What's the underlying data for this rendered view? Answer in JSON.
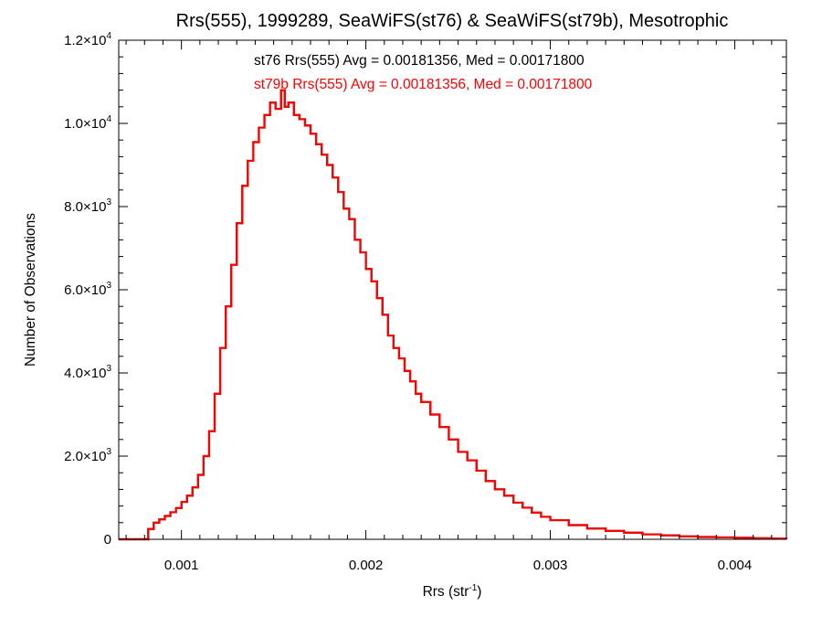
{
  "chart_data": {
    "type": "line",
    "step": true,
    "title": "Rrs(555), 1999289, SeaWiFS(st76) & SeaWiFS(st79b), Mesotrophic",
    "xlabel": {
      "base": "Rrs (str",
      "sup": "-1",
      "close": ")"
    },
    "ylabel": "Number of Observations",
    "xlim": [
      0.00066,
      0.00428
    ],
    "ylim": [
      0,
      12000
    ],
    "grid": false,
    "x_ticks": [
      {
        "value": 0.001,
        "label": "0.001"
      },
      {
        "value": 0.002,
        "label": "0.002"
      },
      {
        "value": 0.003,
        "label": "0.003"
      },
      {
        "value": 0.004,
        "label": "0.004"
      }
    ],
    "y_ticks": [
      {
        "value": 0,
        "label": "0",
        "exp": ""
      },
      {
        "value": 2000,
        "label": "2.0×10",
        "exp": "3"
      },
      {
        "value": 4000,
        "label": "4.0×10",
        "exp": "3"
      },
      {
        "value": 6000,
        "label": "6.0×10",
        "exp": "3"
      },
      {
        "value": 8000,
        "label": "8.0×10",
        "exp": "3"
      },
      {
        "value": 10000,
        "label": "1.0×10",
        "exp": "4"
      },
      {
        "value": 12000,
        "label": "1.2×10",
        "exp": "4"
      }
    ],
    "annotations": [
      {
        "text": "st76 Rrs(555) Avg = 0.00181356, Med = 0.00171800",
        "color": "#000000"
      },
      {
        "text": "st79b Rrs(555) Avg = 0.00181356, Med = 0.00171800",
        "color": "#ff0000"
      }
    ],
    "series": [
      {
        "name": "st76",
        "color": "#000000",
        "ref": "shared"
      },
      {
        "name": "st79b",
        "color": "#ff0000",
        "ref": "shared"
      }
    ],
    "x": [
      0.00066,
      0.00081,
      0.00082,
      0.00085,
      0.00088,
      0.00091,
      0.00094,
      0.00097,
      0.001,
      0.00103,
      0.00106,
      0.00109,
      0.00112,
      0.00115,
      0.00118,
      0.00121,
      0.00124,
      0.00127,
      0.0013,
      0.00133,
      0.00136,
      0.00139,
      0.00142,
      0.00145,
      0.00148,
      0.00151,
      0.00154,
      0.00156,
      0.00158,
      0.00161,
      0.00164,
      0.00167,
      0.0017,
      0.00173,
      0.00176,
      0.00179,
      0.00182,
      0.00185,
      0.00188,
      0.00191,
      0.00194,
      0.00197,
      0.002,
      0.00203,
      0.00206,
      0.00209,
      0.00212,
      0.00215,
      0.00218,
      0.00221,
      0.00224,
      0.00227,
      0.0023,
      0.00235,
      0.0024,
      0.00245,
      0.0025,
      0.00255,
      0.0026,
      0.00265,
      0.0027,
      0.00275,
      0.0028,
      0.00285,
      0.0029,
      0.00295,
      0.003,
      0.0031,
      0.0032,
      0.0033,
      0.0034,
      0.0035,
      0.0036,
      0.0037,
      0.0038,
      0.0039,
      0.004,
      0.0041,
      0.0042,
      0.00428
    ],
    "values": [
      0,
      0,
      250,
      400,
      480,
      560,
      650,
      750,
      900,
      1050,
      1250,
      1550,
      2000,
      2600,
      3500,
      4600,
      5600,
      6600,
      7600,
      8500,
      9100,
      9550,
      9900,
      10200,
      10500,
      10350,
      10800,
      10400,
      10500,
      10200,
      10100,
      9950,
      9750,
      9500,
      9250,
      9000,
      8700,
      8350,
      7950,
      7700,
      7200,
      6900,
      6500,
      6200,
      5800,
      5400,
      4900,
      4600,
      4350,
      4050,
      3800,
      3500,
      3300,
      3000,
      2700,
      2400,
      2100,
      1900,
      1650,
      1400,
      1200,
      1050,
      880,
      760,
      640,
      540,
      460,
      340,
      260,
      200,
      160,
      120,
      95,
      70,
      55,
      45,
      35,
      25,
      18,
      12
    ]
  }
}
